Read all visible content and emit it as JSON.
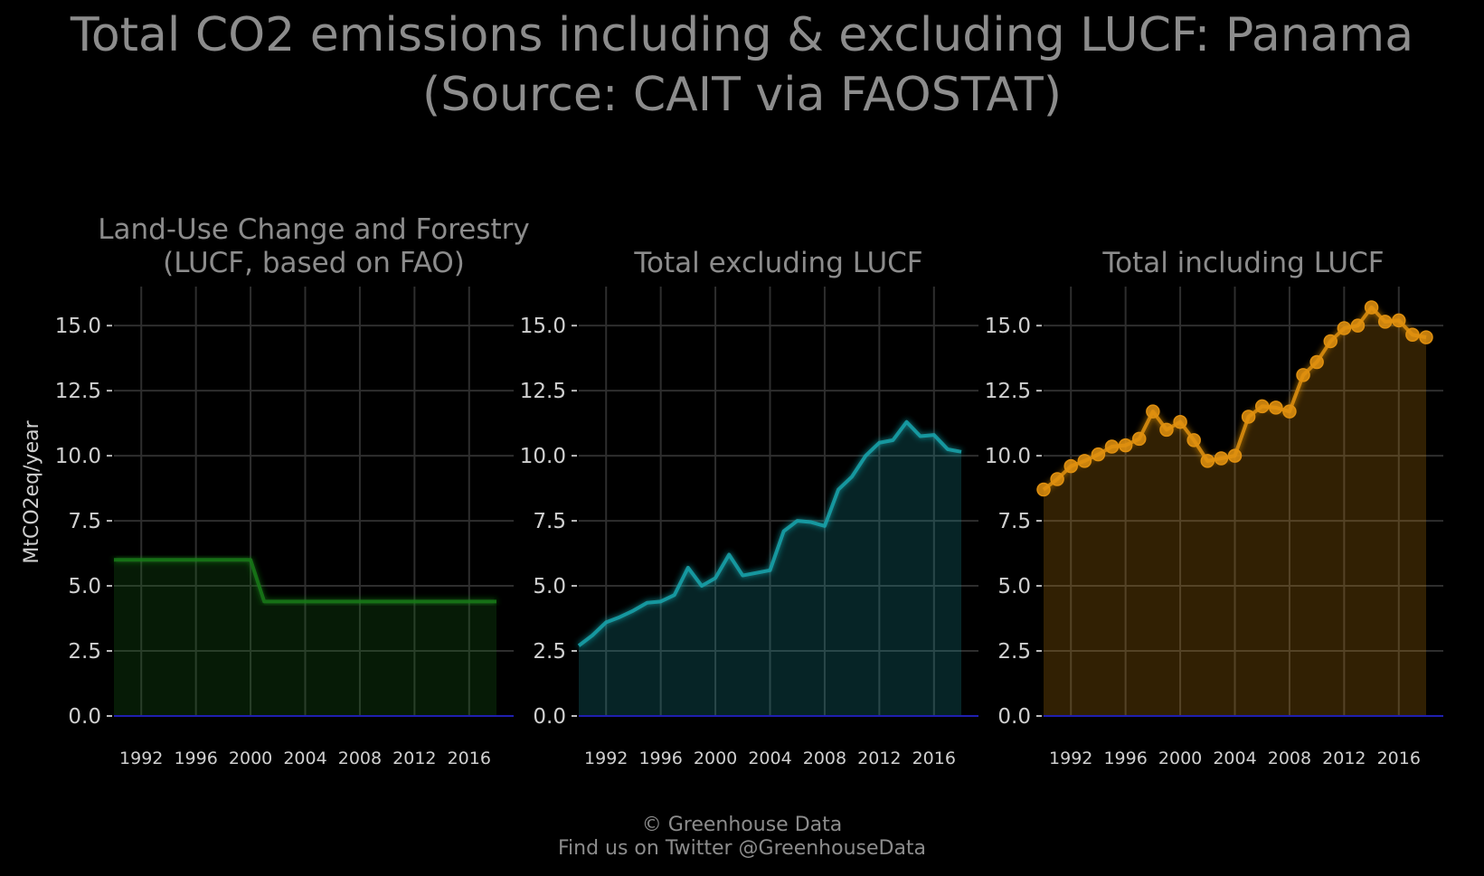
{
  "title": {
    "line1": "Total CO2 emissions including & excluding LUCF: Panama",
    "line2": "(Source: CAIT via FAOSTAT)"
  },
  "footer": {
    "line1": "© Greenhouse Data",
    "line2": "Find us on Twitter @GreenhouseData"
  },
  "colors": {
    "background": "#000000",
    "grid": "#2e2e2e",
    "zero_line": "#1f1fb0",
    "lucf": "#1a7a1a",
    "excl": "#1aa5ad",
    "incl": "#e0900f"
  },
  "chart_data": [
    {
      "type": "area",
      "title_lines": [
        "Land-Use Change and Forestry",
        "(LUCF, based on FAO)"
      ],
      "ylabel": "MtCO2eq/year",
      "ylim": [
        0,
        16.5
      ],
      "yticks": [
        "0.0",
        "2.5",
        "5.0",
        "7.5",
        "10.0",
        "12.5",
        "15.0"
      ],
      "xticks": [
        "1992",
        "1996",
        "2000",
        "2004",
        "2008",
        "2012",
        "2016"
      ],
      "grid": true,
      "markers": false,
      "color_key": "lucf",
      "x": [
        1990,
        1991,
        1992,
        1993,
        1994,
        1995,
        1996,
        1997,
        1998,
        1999,
        2000,
        2001,
        2002,
        2003,
        2004,
        2005,
        2006,
        2007,
        2008,
        2009,
        2010,
        2011,
        2012,
        2013,
        2014,
        2015,
        2016,
        2017,
        2018
      ],
      "values": [
        6.0,
        6.0,
        6.0,
        6.0,
        6.0,
        6.0,
        6.0,
        6.0,
        6.0,
        6.0,
        6.0,
        4.4,
        4.4,
        4.4,
        4.4,
        4.4,
        4.4,
        4.4,
        4.4,
        4.4,
        4.4,
        4.4,
        4.4,
        4.4,
        4.4,
        4.4,
        4.4,
        4.4,
        4.4
      ]
    },
    {
      "type": "area",
      "title_lines": [
        "Total excluding LUCF"
      ],
      "ylabel": "",
      "ylim": [
        0,
        16.5
      ],
      "yticks": [
        "0.0",
        "2.5",
        "5.0",
        "7.5",
        "10.0",
        "12.5",
        "15.0"
      ],
      "xticks": [
        "1992",
        "1996",
        "2000",
        "2004",
        "2008",
        "2012",
        "2016"
      ],
      "grid": true,
      "markers": false,
      "color_key": "excl",
      "x": [
        1990,
        1991,
        1992,
        1993,
        1994,
        1995,
        1996,
        1997,
        1998,
        1999,
        2000,
        2001,
        2002,
        2003,
        2004,
        2005,
        2006,
        2007,
        2008,
        2009,
        2010,
        2011,
        2012,
        2013,
        2014,
        2015,
        2016,
        2017,
        2018
      ],
      "values": [
        2.7,
        3.1,
        3.6,
        3.8,
        4.05,
        4.35,
        4.4,
        4.65,
        5.7,
        5.0,
        5.3,
        6.2,
        5.4,
        5.5,
        5.6,
        7.1,
        7.5,
        7.45,
        7.3,
        8.7,
        9.2,
        10.0,
        10.5,
        10.6,
        11.3,
        10.75,
        10.8,
        10.25,
        10.15
      ]
    },
    {
      "type": "area",
      "title_lines": [
        "Total including LUCF"
      ],
      "ylabel": "",
      "ylim": [
        0,
        16.5
      ],
      "yticks": [
        "0.0",
        "2.5",
        "5.0",
        "7.5",
        "10.0",
        "12.5",
        "15.0"
      ],
      "xticks": [
        "1992",
        "1996",
        "2000",
        "2004",
        "2008",
        "2012",
        "2016"
      ],
      "grid": true,
      "markers": true,
      "color_key": "incl",
      "x": [
        1990,
        1991,
        1992,
        1993,
        1994,
        1995,
        1996,
        1997,
        1998,
        1999,
        2000,
        2001,
        2002,
        2003,
        2004,
        2005,
        2006,
        2007,
        2008,
        2009,
        2010,
        2011,
        2012,
        2013,
        2014,
        2015,
        2016,
        2017,
        2018
      ],
      "values": [
        8.7,
        9.1,
        9.6,
        9.8,
        10.05,
        10.35,
        10.4,
        10.65,
        11.7,
        11.0,
        11.3,
        10.6,
        9.8,
        9.9,
        10.0,
        11.5,
        11.9,
        11.85,
        11.7,
        13.1,
        13.6,
        14.4,
        14.9,
        15.0,
        15.7,
        15.15,
        15.2,
        14.65,
        14.55
      ]
    }
  ]
}
